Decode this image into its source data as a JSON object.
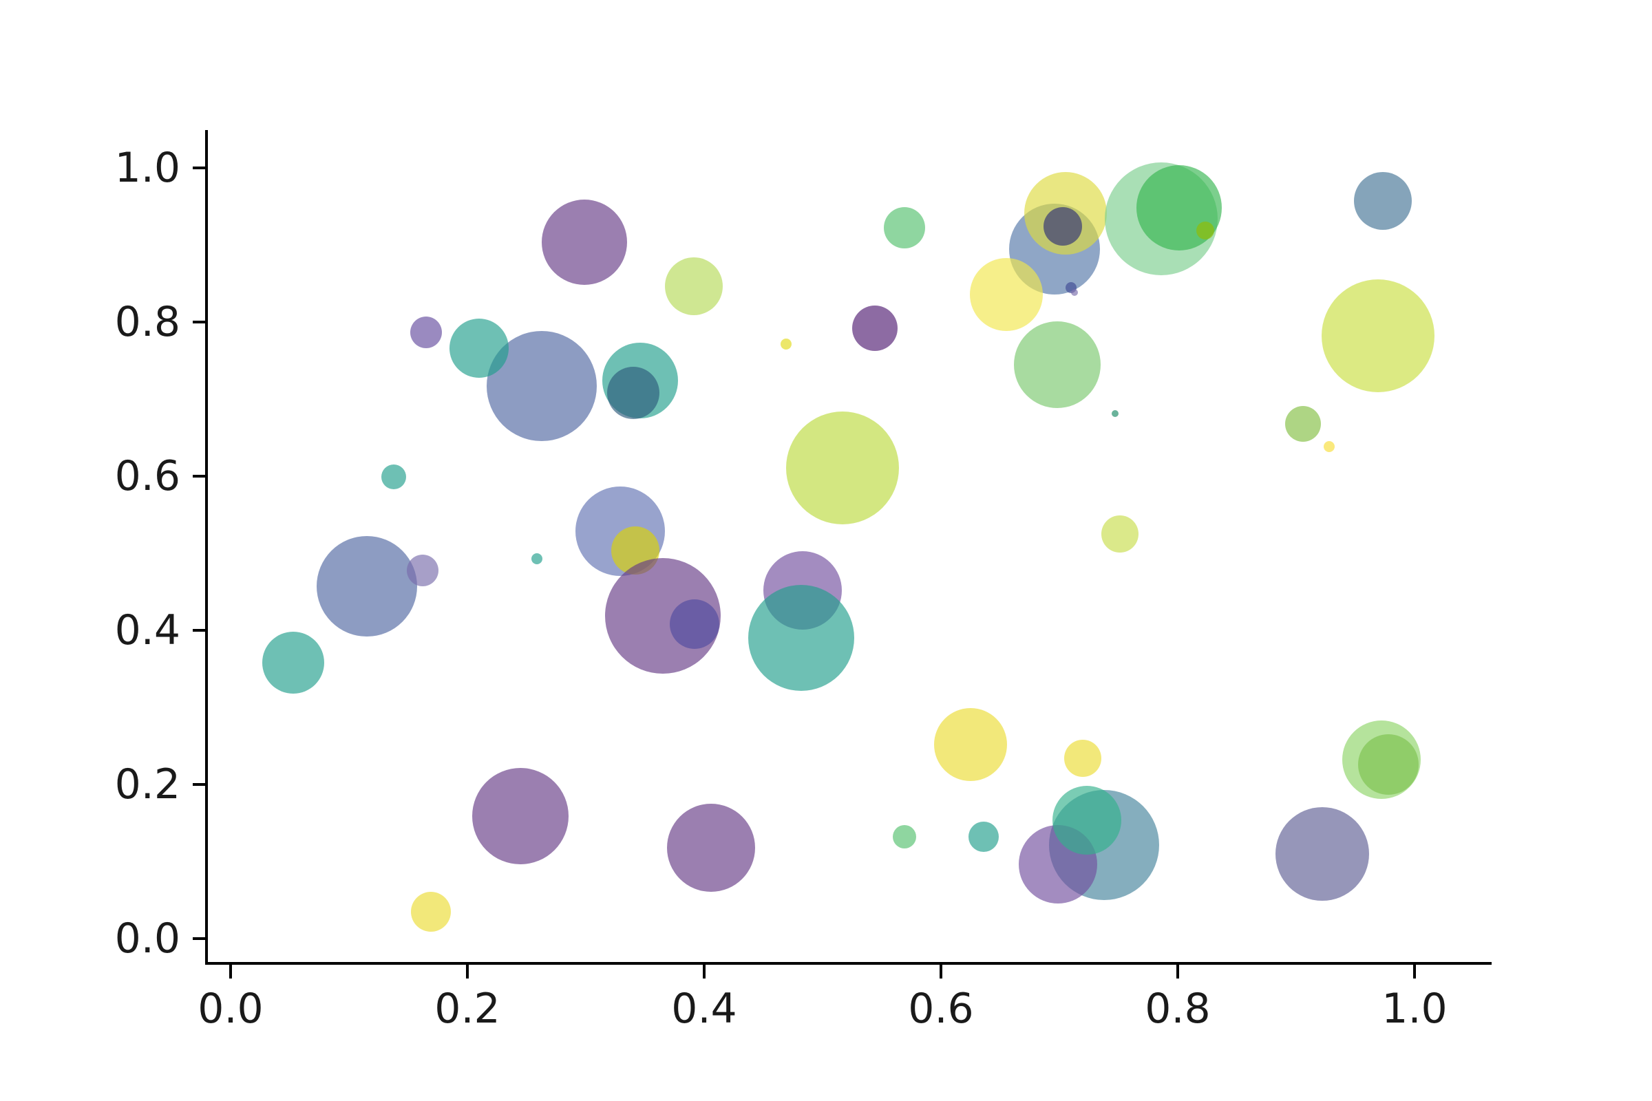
{
  "chart_data": {
    "type": "scatter",
    "title": "",
    "xlabel": "",
    "ylabel": "",
    "xlim": [
      -0.02,
      1.06
    ],
    "ylim": [
      -0.03,
      1.05
    ],
    "grid": false,
    "legend": false,
    "marker_alpha": 0.65,
    "x_ticks": [
      {
        "value": 0.0,
        "label": "0.0"
      },
      {
        "value": 0.2,
        "label": "0.2"
      },
      {
        "value": 0.4,
        "label": "0.4"
      },
      {
        "value": 0.6,
        "label": "0.6"
      },
      {
        "value": 0.8,
        "label": "0.8"
      },
      {
        "value": 1.0,
        "label": "1.0"
      }
    ],
    "y_ticks": [
      {
        "value": 0.0,
        "label": "0.0"
      },
      {
        "value": 0.2,
        "label": "0.2"
      },
      {
        "value": 0.4,
        "label": "0.4"
      },
      {
        "value": 0.6,
        "label": "0.6"
      },
      {
        "value": 0.8,
        "label": "0.8"
      },
      {
        "value": 1.0,
        "label": "1.0"
      }
    ],
    "points": [
      {
        "x": 0.299,
        "y": 0.904,
        "r": 62,
        "color": "#653a85"
      },
      {
        "x": 0.391,
        "y": 0.846,
        "r": 42,
        "color": "#b5da57"
      },
      {
        "x": 0.165,
        "y": 0.787,
        "r": 23,
        "color": "#644c9e"
      },
      {
        "x": 0.263,
        "y": 0.717,
        "r": 80,
        "color": "#5067a1"
      },
      {
        "x": 0.21,
        "y": 0.766,
        "r": 43,
        "color": "#219e8c"
      },
      {
        "x": 0.346,
        "y": 0.724,
        "r": 55,
        "color": "#219e8c"
      },
      {
        "x": 0.34,
        "y": 0.708,
        "r": 38,
        "color": "#2d5b7b"
      },
      {
        "x": 0.138,
        "y": 0.599,
        "r": 18,
        "color": "#219e8c"
      },
      {
        "x": 0.469,
        "y": 0.771,
        "r": 8,
        "color": "#e2da1a"
      },
      {
        "x": 0.115,
        "y": 0.457,
        "r": 73,
        "color": "#5067a1"
      },
      {
        "x": 0.162,
        "y": 0.478,
        "r": 23,
        "color": "#786baa"
      },
      {
        "x": 0.259,
        "y": 0.493,
        "r": 8,
        "color": "#219e8c"
      },
      {
        "x": 0.053,
        "y": 0.358,
        "r": 45,
        "color": "#219e8c"
      },
      {
        "x": 0.329,
        "y": 0.529,
        "r": 65,
        "color": "#6171b2"
      },
      {
        "x": 0.342,
        "y": 0.504,
        "r": 35,
        "color": "#dcd203"
      },
      {
        "x": 0.365,
        "y": 0.419,
        "r": 84,
        "color": "#653a85"
      },
      {
        "x": 0.392,
        "y": 0.408,
        "r": 36,
        "color": "#504b9f"
      },
      {
        "x": 0.483,
        "y": 0.452,
        "r": 57,
        "color": "#714e9e"
      },
      {
        "x": 0.482,
        "y": 0.39,
        "r": 77,
        "color": "#219e8c"
      },
      {
        "x": 0.245,
        "y": 0.159,
        "r": 70,
        "color": "#653a85"
      },
      {
        "x": 0.406,
        "y": 0.118,
        "r": 64,
        "color": "#653a85"
      },
      {
        "x": 0.169,
        "y": 0.035,
        "r": 29,
        "color": "#ebdc32"
      },
      {
        "x": 0.517,
        "y": 0.611,
        "r": 82,
        "color": "#bbda3d"
      },
      {
        "x": 0.696,
        "y": 0.895,
        "r": 66,
        "color": "#5376a7"
      },
      {
        "x": 0.705,
        "y": 0.941,
        "r": 60,
        "color": "#ddda3f"
      },
      {
        "x": 0.786,
        "y": 0.934,
        "r": 82,
        "color": "#7bce8d"
      },
      {
        "x": 0.801,
        "y": 0.948,
        "r": 62,
        "color": "#35b550"
      },
      {
        "x": 0.569,
        "y": 0.922,
        "r": 30,
        "color": "#53c06d"
      },
      {
        "x": 0.703,
        "y": 0.924,
        "r": 28,
        "color": "#2e2f76"
      },
      {
        "x": 0.823,
        "y": 0.919,
        "r": 13,
        "color": "#92bd00"
      },
      {
        "x": 0.655,
        "y": 0.836,
        "r": 53,
        "color": "#f1e64b"
      },
      {
        "x": 0.71,
        "y": 0.845,
        "r": 8,
        "color": "#3f4a93"
      },
      {
        "x": 0.713,
        "y": 0.838,
        "r": 5,
        "color": "#786baa"
      },
      {
        "x": 0.544,
        "y": 0.792,
        "r": 33,
        "color": "#501b71"
      },
      {
        "x": 0.698,
        "y": 0.745,
        "r": 63,
        "color": "#79c76d"
      },
      {
        "x": 0.747,
        "y": 0.681,
        "r": 5,
        "color": "#1a8a65"
      },
      {
        "x": 0.973,
        "y": 0.957,
        "r": 42,
        "color": "#437395"
      },
      {
        "x": 0.969,
        "y": 0.782,
        "r": 82,
        "color": "#c9df40"
      },
      {
        "x": 0.906,
        "y": 0.668,
        "r": 26,
        "color": "#82be42"
      },
      {
        "x": 0.928,
        "y": 0.638,
        "r": 8,
        "color": "#f7dd38"
      },
      {
        "x": 0.751,
        "y": 0.525,
        "r": 27,
        "color": "#c8dd4b"
      },
      {
        "x": 0.625,
        "y": 0.252,
        "r": 53,
        "color": "#ebdc32"
      },
      {
        "x": 0.72,
        "y": 0.234,
        "r": 27,
        "color": "#ebdc32"
      },
      {
        "x": 0.972,
        "y": 0.232,
        "r": 57,
        "color": "#8dd467"
      },
      {
        "x": 0.978,
        "y": 0.226,
        "r": 44,
        "color": "#7cc24e"
      },
      {
        "x": 0.569,
        "y": 0.132,
        "r": 17,
        "color": "#53c06d"
      },
      {
        "x": 0.636,
        "y": 0.132,
        "r": 22,
        "color": "#219e8c"
      },
      {
        "x": 0.738,
        "y": 0.121,
        "r": 80,
        "color": "#43829b"
      },
      {
        "x": 0.699,
        "y": 0.096,
        "r": 57,
        "color": "#714e9e"
      },
      {
        "x": 0.723,
        "y": 0.154,
        "r": 50,
        "color": "#32b08c"
      },
      {
        "x": 0.922,
        "y": 0.11,
        "r": 68,
        "color": "#5d5d93"
      }
    ]
  },
  "colors": {
    "background": "#ffffff",
    "spine": "#000000",
    "tick_label": "#1a1a1a"
  }
}
